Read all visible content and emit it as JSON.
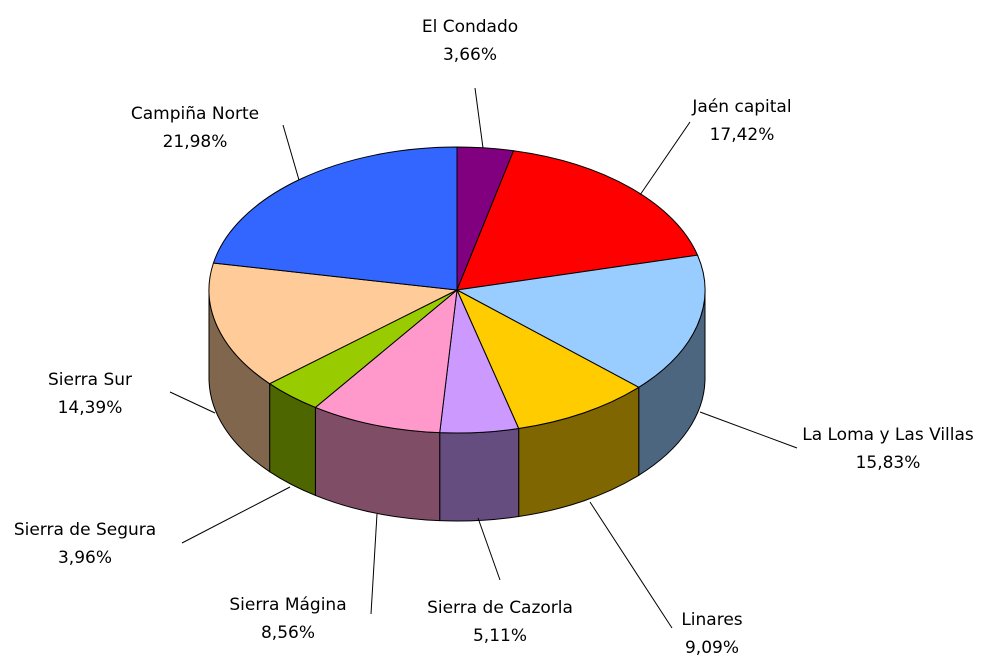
{
  "chart_data": {
    "type": "pie3d",
    "categories": [
      "El Condado",
      "Jaén capital",
      "La Loma y Las Villas",
      "Linares",
      "Sierra de Cazorla",
      "Sierra Mágina",
      "Sierra de Segura",
      "Sierra Sur",
      "Campiña Norte"
    ],
    "values": [
      3.66,
      17.42,
      15.83,
      9.09,
      5.11,
      8.56,
      3.96,
      14.39,
      21.98
    ],
    "value_labels": [
      "3,66%",
      "17,42%",
      "15,83%",
      "9,09%",
      "5,11%",
      "8,56%",
      "3,96%",
      "14,39%",
      "21,98%"
    ],
    "colors": [
      "#800080",
      "#ff0000",
      "#99ccff",
      "#ffcc00",
      "#cc99ff",
      "#ff99cc",
      "#99cc00",
      "#ffcc99",
      "#3366ff"
    ]
  }
}
